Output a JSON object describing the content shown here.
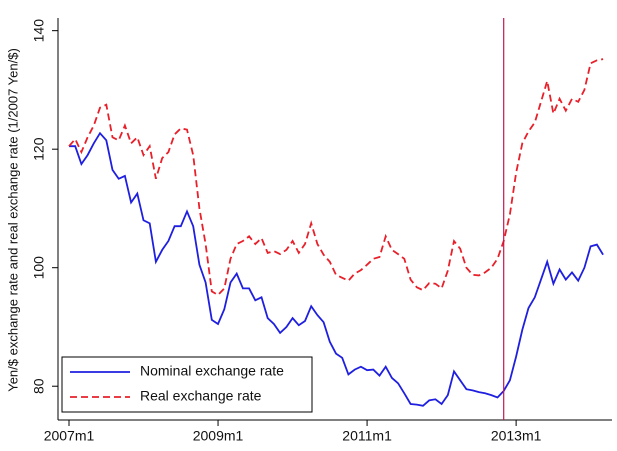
{
  "chart_data": {
    "type": "line",
    "y_label": "Yen/$ exchange rate and real exchange rate (1/2007 Yen/$)",
    "categories": [
      "2007m1",
      null,
      null,
      null,
      null,
      null,
      null,
      null,
      null,
      null,
      null,
      null,
      null,
      null,
      null,
      null,
      null,
      null,
      null,
      null,
      null,
      null,
      null,
      null,
      "2009m1",
      null,
      null,
      null,
      null,
      null,
      null,
      null,
      null,
      null,
      null,
      null,
      null,
      null,
      null,
      null,
      null,
      null,
      null,
      null,
      null,
      null,
      null,
      null,
      "2011m1",
      null,
      null,
      null,
      null,
      null,
      null,
      null,
      null,
      null,
      null,
      null,
      null,
      null,
      null,
      null,
      null,
      null,
      null,
      null,
      null,
      null,
      null,
      null,
      "2013m1",
      null,
      null,
      null,
      null,
      null,
      null,
      null,
      null,
      null,
      null,
      null,
      null,
      null,
      null
    ],
    "series": [
      {
        "name": "Nominal exchange rate",
        "color": "#1f1fe0",
        "dash": false,
        "values": [
          120.5,
          120.5,
          117.5,
          119,
          121,
          122.7,
          121.5,
          116.5,
          115,
          115.5,
          111,
          112.5,
          108,
          107.5,
          101,
          103,
          104.5,
          107,
          107,
          109.5,
          107,
          100.5,
          97.5,
          91.2,
          90.5,
          93,
          97.5,
          99,
          96.5,
          96.5,
          94.5,
          95,
          91.5,
          90.5,
          89,
          90,
          91.5,
          90.3,
          91,
          93.5,
          92,
          90.8,
          87.5,
          85.5,
          84.8,
          82,
          82.8,
          83.3,
          82.7,
          82.8,
          81.8,
          83.3,
          81.4,
          80.5,
          78.8,
          77,
          76.9,
          76.7,
          77.6,
          77.8,
          77,
          78.5,
          82.5,
          81,
          79.5,
          79.3,
          79,
          78.8,
          78.5,
          78.1,
          79.2,
          81,
          85,
          89.5,
          93.2,
          95,
          98,
          101,
          97.3,
          99.7,
          98,
          99.2,
          97.8,
          100,
          103.6,
          103.9,
          102.2
        ]
      },
      {
        "name": "Real exchange rate",
        "color": "#e8202a",
        "dash": true,
        "values": [
          120.5,
          121.7,
          119.5,
          122,
          124,
          127,
          127.5,
          122,
          121.5,
          124,
          121,
          122,
          119,
          120.5,
          115,
          118.5,
          119.5,
          122.5,
          123.5,
          123.3,
          119,
          110,
          104,
          96,
          95.4,
          96.5,
          101.5,
          104,
          104.5,
          105.3,
          104,
          105,
          102.5,
          102.8,
          102.3,
          103,
          104.5,
          102.5,
          104,
          107.5,
          104,
          102.2,
          101,
          98.8,
          98.3,
          97.8,
          99,
          99.6,
          100.5,
          101.5,
          101.8,
          105.3,
          103,
          102.3,
          101.5,
          98,
          96.7,
          96.2,
          97.4,
          97.3,
          96.5,
          99.5,
          104.5,
          103.2,
          100,
          98.8,
          98.7,
          99.2,
          100,
          101.5,
          104.5,
          109,
          116,
          121,
          123,
          124.5,
          128,
          131.5,
          126,
          128.5,
          126.5,
          128.5,
          128,
          130,
          134.5,
          135,
          135.2
        ]
      }
    ],
    "vline": {
      "x": 70,
      "color": "#c0184c"
    },
    "ylim": [
      74.3,
      141.8
    ],
    "yticks": [
      80,
      100,
      120,
      140
    ],
    "legend": "bottom-left"
  }
}
